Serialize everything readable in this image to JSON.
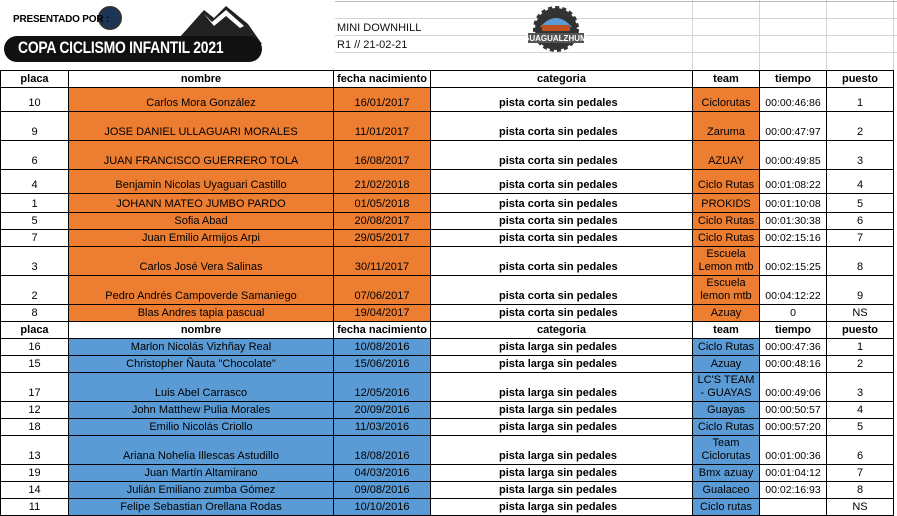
{
  "header": {
    "presented_by": "PRESENTADO POR :",
    "event_banner": "COPA CICLISMO INFANTIL 2021",
    "event_type": "MINI DOWNHILL",
    "round_date": "R1 // 21-02-21",
    "sponsor_logo": "GUAGUALZHUMI"
  },
  "colors": {
    "orange": "#ed7d31",
    "blue": "#5b9bd5"
  },
  "columns": [
    "placa",
    "nombre",
    "fecha nacimiento",
    "categoria",
    "team",
    "tiempo",
    "puesto"
  ],
  "sections": [
    {
      "color": "orange",
      "rows": [
        {
          "placa": "10",
          "nombre": "Carlos Mora González",
          "fecha": "16/01/2017",
          "categoria": "pista corta sin pedales",
          "team": "Ciclorutas",
          "tiempo": "00:00:46:86",
          "puesto": "1"
        },
        {
          "placa": "9",
          "nombre": "JOSE DANIEL ULLAGUARI MORALES",
          "fecha": "11/01/2017",
          "categoria": "pista corta sin pedales",
          "team": "Zaruma",
          "tiempo": "00:00:47:97",
          "puesto": "2"
        },
        {
          "placa": "6",
          "nombre": "JUAN FRANCISCO GUERRERO TOLA",
          "fecha": "16/08/2017",
          "categoria": "pista corta sin pedales",
          "team": "AZUAY",
          "tiempo": "00:00:49:85",
          "puesto": "3"
        },
        {
          "placa": "4",
          "nombre": "Benjamin Nicolas Uyaguari Castillo",
          "fecha": "21/02/2018",
          "categoria": "pista corta sin pedales",
          "team": "Ciclo Rutas",
          "tiempo": "00:01:08:22",
          "puesto": "4"
        },
        {
          "placa": "1",
          "nombre": "JOHANN MATEO JUMBO PARDO",
          "fecha": "01/05/2018",
          "categoria": "pista corta sin pedales",
          "team": "PROKIDS",
          "tiempo": "00:01:10:08",
          "puesto": "5"
        },
        {
          "placa": "5",
          "nombre": "Sofia Abad",
          "fecha": "20/08/2017",
          "categoria": "pista corta sin pedales",
          "team": "Ciclo Rutas",
          "tiempo": "00:01:30:38",
          "puesto": "6"
        },
        {
          "placa": "7",
          "nombre": "Juan Emilio Armijos Arpi",
          "fecha": "29/05/2017",
          "categoria": "pista corta sin pedales",
          "team": "Ciclo Rutas",
          "tiempo": "00:02:15:16",
          "puesto": "7"
        },
        {
          "placa": "3",
          "nombre": "Carlos José Vera Salinas",
          "fecha": "30/11/2017",
          "categoria": "pista corta sin pedales",
          "team": "Escuela Lemon mtb",
          "tiempo": "00:02:15:25",
          "puesto": "8"
        },
        {
          "placa": "2",
          "nombre": "Pedro Andrés Campoverde Samaniego",
          "fecha": "07/06/2017",
          "categoria": "pista corta sin pedales",
          "team": "Escuela lemon mtb",
          "tiempo": "00:04:12:22",
          "puesto": "9"
        },
        {
          "placa": "8",
          "nombre": "Blas Andres tapia pascual",
          "fecha": "19/04/2017",
          "categoria": "pista corta sin pedales",
          "team": "Azuay",
          "tiempo": "0",
          "puesto": "NS"
        }
      ]
    },
    {
      "color": "blue",
      "rows": [
        {
          "placa": "16",
          "nombre": "Marlon Nicolás Vizhñay Real",
          "fecha": "10/08/2016",
          "categoria": "pista larga sin pedales",
          "team": "Ciclo Rutas",
          "tiempo": "00:00:47:36",
          "puesto": "1"
        },
        {
          "placa": "15",
          "nombre": "Christopher Ñauta \"Chocolate\"",
          "fecha": "15/06/2016",
          "categoria": "pista larga sin pedales",
          "team": "Azuay",
          "tiempo": "00:00:48:16",
          "puesto": "2"
        },
        {
          "placa": "17",
          "nombre": "Luis Abel Carrasco",
          "fecha": "12/05/2016",
          "categoria": "pista larga sin pedales",
          "team": "LC'S TEAM - GUAYAS",
          "tiempo": "00:00:49:06",
          "puesto": "3"
        },
        {
          "placa": "12",
          "nombre": "John Matthew Pulia Morales",
          "fecha": "20/09/2016",
          "categoria": "pista larga sin pedales",
          "team": "Guayas",
          "tiempo": "00:00:50:57",
          "puesto": "4"
        },
        {
          "placa": "18",
          "nombre": "Emilio Nicolás Criollo",
          "fecha": "11/03/2016",
          "categoria": "pista larga sin pedales",
          "team": "Ciclo Rutas",
          "tiempo": "00:00:57:20",
          "puesto": "5"
        },
        {
          "placa": "13",
          "nombre": "Ariana Nohelia Illescas Astudillo",
          "fecha": "18/08/2016",
          "categoria": "pista larga sin pedales",
          "team": "Team Ciclorutas",
          "tiempo": "00:01:00:36",
          "puesto": "6"
        },
        {
          "placa": "19",
          "nombre": "Juan Martín Altamirano",
          "fecha": "04/03/2016",
          "categoria": "pista larga sin pedales",
          "team": "Bmx azuay",
          "tiempo": "00:01:04:12",
          "puesto": "7"
        },
        {
          "placa": "14",
          "nombre": "Julián Emiliano zumba Gómez",
          "fecha": "09/08/2016",
          "categoria": "pista larga sin pedales",
          "team": "Gualaceo",
          "tiempo": "00:02:16:93",
          "puesto": "8"
        },
        {
          "placa": "11",
          "nombre": "Felipe Sebastian Orellana Rodas",
          "fecha": "10/10/2016",
          "categoria": "pista larga sin pedales",
          "team": "Ciclo rutas",
          "tiempo": "",
          "puesto": "NS"
        }
      ]
    }
  ]
}
